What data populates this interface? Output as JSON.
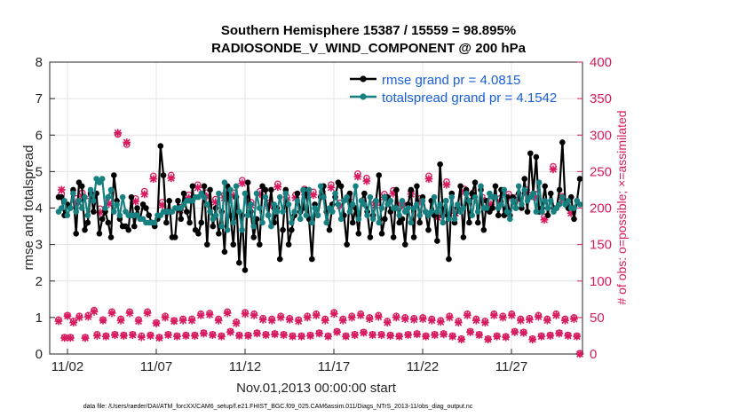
{
  "chart_data": {
    "type": "line",
    "title": "Southern Hemisphere 15387 / 15559 = 98.895%",
    "subtitle": "RADIOSONDE_V_WIND_COMPONENT @ 200 hPa",
    "xlabel": "Nov.01,2013 00:00:00 start",
    "ylabel": "rmse and totalspread",
    "ylabel_right": "# of obs: o=possible; ×=assimilated",
    "footer": "data file: /Users/raeder/DAI/ATM_forcXX/CAM6_setup/f.e21.FHIST_BGC.f09_025.CAM6assim.011/Diags_NTrS_2013-11/obs_diag_output.nc",
    "xlim": [
      0.5,
      30.5
    ],
    "ylim": [
      0,
      8
    ],
    "ylim_right": [
      0,
      400
    ],
    "x_ticks": [
      1.5,
      6.5,
      11.5,
      16.5,
      21.5,
      26.5
    ],
    "x_tick_labels": [
      "11/02",
      "11/07",
      "11/12",
      "11/17",
      "11/22",
      "11/27"
    ],
    "y_ticks": [
      0,
      1,
      2,
      3,
      4,
      5,
      6,
      7,
      8
    ],
    "y_ticks_right": [
      0,
      50,
      100,
      150,
      200,
      250,
      300,
      350,
      400
    ],
    "legend_position": "top-right",
    "series": [
      {
        "name": "rmse grand pr = 4.0815",
        "axis": "left",
        "color": "#000000",
        "values": [
          4.3,
          4.3,
          3.8,
          4.1,
          4.0,
          4.5,
          3.3,
          4.7,
          4.6,
          3.4,
          3.6,
          4.4,
          3.9,
          4.4,
          3.3,
          3.7,
          3.9,
          3.6,
          3.2,
          4.9,
          4.2,
          3.7,
          3.5,
          3.5,
          3.4,
          4.3,
          3.5,
          4.0,
          3.7,
          4.1,
          4.0,
          3.8,
          3.6,
          3.5,
          3.7,
          5.7,
          4.9,
          3.6,
          4.2,
          3.2,
          3.2,
          4.2,
          3.7,
          4.4,
          3.9,
          3.6,
          4.6,
          3.4,
          3.3,
          3.6,
          4.6,
          3.0,
          4.5,
          3.5,
          4.0,
          3.3,
          3.9,
          2.8,
          4.6,
          3.8,
          3.0,
          4.3,
          2.5,
          3.8,
          2.3,
          4.7,
          3.9,
          3.2,
          3.7,
          3.0,
          4.6,
          4.5,
          3.8,
          4.5,
          3.6,
          4.0,
          2.6,
          3.4,
          4.5,
          3.0,
          3.4,
          3.8,
          4.4,
          3.9,
          4.0,
          4.5,
          3.7,
          2.6,
          4.1,
          3.8,
          4.3,
          4.6,
          3.9,
          3.4,
          4.1,
          4.3,
          4.7,
          4.6,
          3.8,
          3.0,
          4.4,
          3.6,
          4.0,
          3.3,
          4.2,
          4.4,
          3.9,
          3.2,
          3.8,
          4.2,
          4.9,
          3.3,
          3.7,
          4.3,
          3.9,
          3.2,
          4.5,
          3.6,
          3.7,
          3.0,
          4.1,
          4.5,
          3.2,
          4.6,
          3.6,
          4.3,
          3.9,
          3.4,
          4.2,
          3.8,
          3.1,
          5.2,
          3.8,
          4.2,
          2.6,
          4.4,
          3.6,
          4.0,
          4.6,
          3.2,
          4.5,
          3.6,
          4.4,
          4.7,
          3.6,
          4.5,
          3.4,
          4.2,
          3.9,
          4.0,
          4.6,
          3.8,
          4.5,
          3.8,
          4.3,
          3.8,
          4.3,
          4.0,
          4.4,
          4.0,
          4.8,
          3.9,
          5.5,
          4.4,
          5.4,
          3.9,
          4.0,
          4.6,
          3.8,
          4.4,
          4.0,
          4.0,
          4.5,
          5.8,
          4.1,
          4.0,
          4.3,
          3.7,
          4.2,
          4.8
        ]
      },
      {
        "name": "totalspread grand pr = 4.1542",
        "axis": "left",
        "color": "#178080",
        "values": [
          3.9,
          4.0,
          4.2,
          3.8,
          4.0,
          4.4,
          3.9,
          4.2,
          4.0,
          4.3,
          3.8,
          4.5,
          4.2,
          4.8,
          4.7,
          4.8,
          4.0,
          4.3,
          4.5,
          3.9,
          4.1,
          3.8,
          4.3,
          3.9,
          3.8,
          3.8,
          3.8,
          3.8,
          3.7,
          3.7,
          3.6,
          3.6,
          3.6,
          3.6,
          3.8,
          3.8,
          3.9,
          3.9,
          3.9,
          3.9,
          4.0,
          4.0,
          4.0,
          4.1,
          4.2,
          4.2,
          4.2,
          4.3,
          4.3,
          4.4,
          4.3,
          4.1,
          3.9,
          3.7,
          3.8,
          4.4,
          3.5,
          4.7,
          3.4,
          4.5,
          3.6,
          4.6,
          3.9,
          3.4,
          4.4,
          3.8,
          4.1,
          3.5,
          4.4,
          4.0,
          3.6,
          4.3,
          3.8,
          3.5,
          4.1,
          3.9,
          4.3,
          3.9,
          4.4,
          4.1,
          3.6,
          3.9,
          4.2,
          3.7,
          4.5,
          3.8,
          4.5,
          3.6,
          4.0,
          3.8,
          4.6,
          4.3,
          3.6,
          4.0,
          3.9,
          4.4,
          4.1,
          3.7,
          4.2,
          4.3,
          3.9,
          4.1,
          4.6,
          3.7,
          4.2,
          4.1,
          3.8,
          4.3,
          3.7,
          4.2,
          3.6,
          4.0,
          4.3,
          4.1,
          4.2,
          4.0,
          4.0,
          3.8,
          4.2,
          3.9,
          4.0,
          3.6,
          4.0,
          4.1,
          3.8,
          4.2,
          3.9,
          3.8,
          3.9,
          4.3,
          3.9,
          4.1,
          3.6,
          4.2,
          3.7,
          4.3,
          3.7,
          4.1,
          3.9,
          4.0,
          4.4,
          4.2,
          3.8,
          4.3,
          3.9,
          4.6,
          4.0,
          4.0,
          4.4,
          4.3,
          4.3,
          4.0,
          4.1,
          4.5,
          3.9,
          3.7,
          4.2,
          4.0,
          4.6,
          4.1,
          4.5,
          4.2,
          4.3,
          4.4,
          3.9,
          4.7,
          3.9,
          4.2,
          4.0,
          4.2,
          3.9,
          4.0,
          4.1,
          4.3,
          4.1,
          4.2,
          4.0,
          4.0,
          4.2,
          4.1
        ]
      },
      {
        "name": "possible",
        "axis": "right",
        "color": "#d81b60",
        "marker": "o",
        "values": [
          47,
          219,
          23,
          53,
          23,
          45,
          213,
          52,
          221,
          23,
          53,
          219,
          60,
          27,
          199,
          47,
          25,
          211,
          58,
          27,
          301,
          48,
          26,
          287,
          58,
          27,
          213,
          47,
          25,
          223,
          58,
          26,
          244,
          43,
          23,
          208,
          52,
          27,
          245,
          46,
          25,
          201,
          48,
          26,
          218,
          48,
          26,
          232,
          55,
          29,
          221,
          56,
          27,
          212,
          48,
          25,
          218,
          58,
          31,
          221,
          44,
          26,
          238,
          57,
          26,
          208,
          55,
          29,
          223,
          49,
          27,
          207,
          48,
          28,
          233,
          52,
          27,
          215,
          49,
          25,
          218,
          47,
          25,
          226,
          52,
          26,
          222,
          55,
          29,
          222,
          48,
          25,
          232,
          57,
          31,
          207,
          48,
          25,
          216,
          52,
          27,
          247,
          55,
          30,
          241,
          50,
          27,
          208,
          53,
          27,
          219,
          45,
          26,
          224,
          52,
          25,
          207,
          50,
          27,
          223,
          49,
          28,
          213,
          50,
          25,
          244,
          48,
          27,
          191,
          46,
          28,
          236,
          52,
          25,
          197,
          45,
          21,
          226,
          55,
          31,
          221,
          48,
          27,
          215,
          45,
          21,
          209,
          55,
          25,
          213,
          52,
          24,
          219,
          55,
          31,
          216,
          48,
          30,
          225,
          49,
          21,
          219,
          53,
          25,
          188,
          48,
          26,
          257,
          55,
          29,
          216,
          48,
          26,
          197,
          50,
          25,
          1
        ]
      },
      {
        "name": "assimilated",
        "axis": "right",
        "color": "#d81b60",
        "marker": "x",
        "values": [
          45,
          225,
          22,
          52,
          22,
          43,
          208,
          50,
          216,
          22,
          51,
          213,
          58,
          25,
          194,
          46,
          24,
          206,
          56,
          26,
          303,
          46,
          25,
          290,
          56,
          26,
          209,
          45,
          23,
          219,
          56,
          25,
          240,
          42,
          22,
          204,
          50,
          26,
          241,
          45,
          24,
          197,
          46,
          25,
          214,
          46,
          25,
          228,
          53,
          28,
          216,
          54,
          26,
          208,
          46,
          24,
          214,
          56,
          30,
          217,
          42,
          25,
          234,
          55,
          25,
          204,
          53,
          28,
          219,
          47,
          26,
          203,
          46,
          27,
          229,
          50,
          26,
          211,
          47,
          24,
          214,
          45,
          24,
          222,
          50,
          25,
          218,
          53,
          28,
          218,
          46,
          24,
          228,
          55,
          30,
          203,
          46,
          24,
          212,
          50,
          26,
          243,
          53,
          29,
          237,
          48,
          26,
          204,
          51,
          26,
          215,
          43,
          25,
          220,
          50,
          24,
          203,
          48,
          26,
          219,
          47,
          27,
          209,
          48,
          24,
          240,
          46,
          26,
          187,
          44,
          27,
          232,
          50,
          24,
          193,
          43,
          20,
          222,
          53,
          30,
          217,
          46,
          26,
          211,
          43,
          20,
          205,
          53,
          24,
          209,
          50,
          23,
          215,
          53,
          30,
          212,
          46,
          29,
          221,
          47,
          20,
          215,
          51,
          24,
          184,
          46,
          25,
          253,
          53,
          28,
          212,
          46,
          25,
          193,
          48,
          24,
          0
        ]
      }
    ]
  }
}
